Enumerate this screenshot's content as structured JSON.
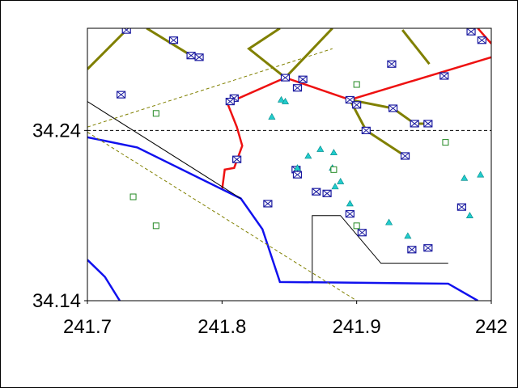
{
  "chart_data": {
    "type": "map",
    "xlim": [
      241.7,
      242
    ],
    "ylim": [
      34.14,
      34.3
    ],
    "xticks": [
      241.7,
      241.8,
      241.9,
      242
    ],
    "yticks": [
      34.14,
      34.24
    ],
    "grid": true,
    "lines": [
      {
        "color": "#ee1111",
        "width": 2.5,
        "dashed": false,
        "x": [
          241.8,
          241.802,
          241.809,
          241.815,
          241.811,
          241.804,
          241.847,
          241.895,
          242.0
        ],
        "y": [
          34.205,
          34.217,
          34.218,
          34.231,
          34.242,
          34.256,
          34.271,
          34.258,
          34.283
        ]
      },
      {
        "color": "#ee1111",
        "width": 2.5,
        "dashed": false,
        "x": [
          241.99,
          242.0
        ],
        "y": [
          34.3,
          34.291
        ]
      },
      {
        "color": "#808000",
        "width": 3,
        "dashed": false,
        "x": [
          241.7,
          241.729
        ],
        "y": [
          34.276,
          34.299
        ]
      },
      {
        "color": "#808000",
        "width": 3,
        "dashed": false,
        "x": [
          241.744,
          241.777,
          241.783
        ],
        "y": [
          34.3,
          34.284,
          34.283
        ]
      },
      {
        "color": "#808000",
        "width": 3,
        "dashed": false,
        "x": [
          241.843,
          241.82,
          241.847,
          241.882
        ],
        "y": [
          34.3,
          34.288,
          34.271,
          34.3
        ]
      },
      {
        "color": "#808000",
        "width": 3,
        "dashed": false,
        "x": [
          241.895,
          241.907,
          241.936
        ],
        "y": [
          34.258,
          34.24,
          34.225
        ]
      },
      {
        "color": "#808000",
        "width": 3,
        "dashed": false,
        "x": [
          241.895,
          241.927,
          241.943,
          241.953
        ],
        "y": [
          34.258,
          34.253,
          34.244,
          34.244
        ]
      },
      {
        "color": "#808000",
        "width": 3,
        "dashed": false,
        "x": [
          241.934,
          241.954
        ],
        "y": [
          34.299,
          34.279
        ]
      },
      {
        "color": "#1111ee",
        "width": 2.5,
        "dashed": false,
        "x": [
          241.7,
          241.737,
          241.814,
          241.83,
          241.843,
          241.968,
          241.99
        ],
        "y": [
          34.236,
          34.23,
          34.2,
          34.182,
          34.151,
          34.15,
          34.14
        ]
      },
      {
        "color": "#1111ee",
        "width": 2.5,
        "dashed": false,
        "x": [
          241.7,
          241.713,
          241.724
        ],
        "y": [
          34.164,
          34.154,
          34.14
        ]
      },
      {
        "color": "#000000",
        "width": 1,
        "dashed": false,
        "x": [
          241.7,
          241.814
        ],
        "y": [
          34.257,
          34.2
        ]
      },
      {
        "color": "#000000",
        "width": 1,
        "dashed": false,
        "x": [
          241.867,
          241.867,
          241.888,
          241.918,
          241.968
        ],
        "y": [
          34.151,
          34.19,
          34.19,
          34.162,
          34.162
        ]
      },
      {
        "color": "#808000",
        "width": 1,
        "dashed": true,
        "x": [
          241.7,
          241.882
        ],
        "y": [
          34.242,
          34.288
        ]
      },
      {
        "color": "#808000",
        "width": 1,
        "dashed": true,
        "x": [
          241.7,
          241.9
        ],
        "y": [
          34.239,
          34.14
        ]
      }
    ],
    "points": [
      {
        "marker": "envelope",
        "color": "#1a1aa0",
        "x": [
          241.729,
          241.764,
          241.777,
          241.783,
          241.725,
          241.809,
          241.806,
          241.847,
          241.86,
          241.856,
          241.895,
          241.9,
          241.927,
          241.907,
          241.943,
          241.953,
          241.936,
          241.811,
          241.855,
          241.856,
          241.87,
          241.878,
          241.834,
          241.895,
          241.904,
          241.941,
          241.953,
          241.978,
          241.965,
          241.926,
          241.985,
          241.993
        ],
        "y": [
          34.299,
          34.293,
          34.284,
          34.283,
          34.261,
          34.259,
          34.257,
          34.271,
          34.27,
          34.265,
          34.258,
          34.255,
          34.253,
          34.24,
          34.244,
          34.244,
          34.225,
          34.223,
          34.217,
          34.214,
          34.204,
          34.203,
          34.197,
          34.191,
          34.18,
          34.17,
          34.171,
          34.195,
          34.272,
          34.279,
          34.298,
          34.293
        ]
      },
      {
        "marker": "triangle",
        "color": "#22cccc",
        "x": [
          241.837,
          241.844,
          241.847,
          241.856,
          241.864,
          241.873,
          241.883,
          241.882,
          241.888,
          241.884,
          241.895,
          241.924,
          241.938,
          241.98,
          241.984,
          241.992
        ],
        "y": [
          34.248,
          34.258,
          34.257,
          34.218,
          34.225,
          34.229,
          34.227,
          34.218,
          34.21,
          34.207,
          34.197,
          34.186,
          34.178,
          34.212,
          34.19,
          34.214
        ]
      },
      {
        "marker": "square",
        "color": "#228822",
        "x": [
          241.751,
          241.734,
          241.751,
          241.9,
          241.883,
          241.9,
          241.966
        ],
        "y": [
          34.25,
          34.201,
          34.184,
          34.267,
          34.217,
          34.184,
          34.233
        ]
      }
    ]
  }
}
